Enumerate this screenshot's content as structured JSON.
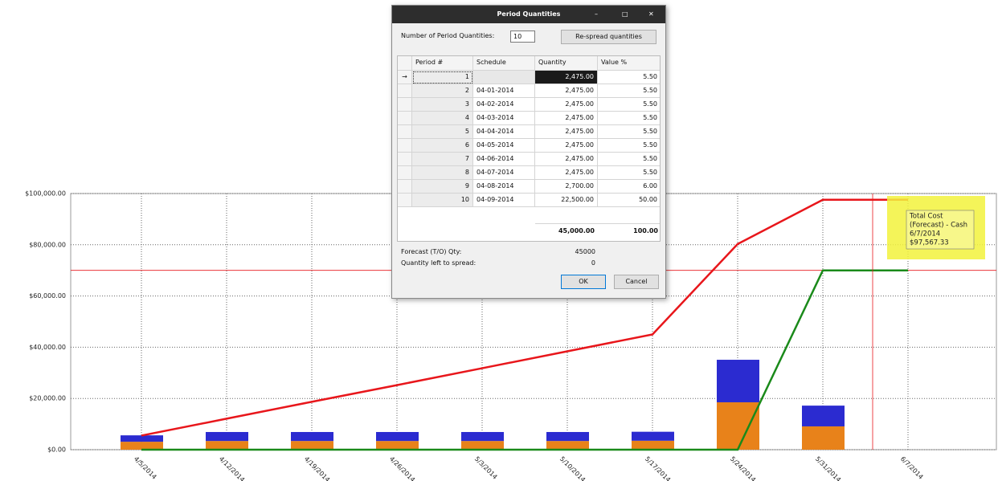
{
  "chart_data": {
    "type": "combo",
    "categories": [
      "4/5/2014",
      "4/12/2014",
      "4/19/2014",
      "4/26/2014",
      "5/3/2014",
      "5/10/2014",
      "5/17/2014",
      "5/24/2014",
      "5/31/2014",
      "6/7/2014"
    ],
    "series": [
      {
        "type": "bar",
        "color": "#e8821a",
        "values": [
          3100,
          3400,
          3400,
          3400,
          3400,
          3400,
          3500,
          18500,
          9100,
          null
        ]
      },
      {
        "type": "bar",
        "color": "#2b2bd0",
        "values": [
          2500,
          3500,
          3500,
          3500,
          3500,
          3500,
          3500,
          16600,
          8100,
          null
        ]
      },
      {
        "type": "line",
        "color": "#e8161b",
        "values": [
          5500,
          12100,
          18700,
          25200,
          31800,
          38400,
          45000,
          80300,
          97567.33,
          97567.33
        ]
      },
      {
        "type": "line",
        "color": "#1a8a1a",
        "values": [
          0,
          0,
          0,
          0,
          0,
          0,
          0,
          0,
          70000,
          70000
        ]
      }
    ],
    "reference_value": 70000,
    "ylim": [
      0,
      100000
    ],
    "yticks": [
      {
        "value": 0,
        "label": "$0.00"
      },
      {
        "value": 20000,
        "label": "$20,000.00"
      },
      {
        "value": 40000,
        "label": "$40,000.00"
      },
      {
        "value": 60000,
        "label": "$60,000.00"
      },
      {
        "value": 80000,
        "label": "$80,000.00"
      },
      {
        "value": 100000,
        "label": "$100,000.00"
      }
    ],
    "grid": true,
    "tooltip": [
      "Total Cost",
      "(Forecast) - Cash",
      "6/7/2014",
      "$97,567.33"
    ]
  },
  "dialog": {
    "title": "Period Quantities",
    "number_label": "Number of Period Quantities:",
    "number_value": 10,
    "respread_button": "Re-spread quantities",
    "columns": [
      "Period #",
      "Schedule",
      "Quantity",
      "Value %"
    ],
    "rows": [
      [
        1,
        null,
        "2,475.00",
        "5.50"
      ],
      [
        2,
        "04-01-2014",
        "2,475.00",
        "5.50"
      ],
      [
        3,
        "04-02-2014",
        "2,475.00",
        "5.50"
      ],
      [
        4,
        "04-03-2014",
        "2,475.00",
        "5.50"
      ],
      [
        5,
        "04-04-2014",
        "2,475.00",
        "5.50"
      ],
      [
        6,
        "04-05-2014",
        "2,475.00",
        "5.50"
      ],
      [
        7,
        "04-06-2014",
        "2,475.00",
        "5.50"
      ],
      [
        8,
        "04-07-2014",
        "2,475.00",
        "5.50"
      ],
      [
        9,
        "04-08-2014",
        "2,700.00",
        "6.00"
      ],
      [
        10,
        "04-09-2014",
        "22,500.00",
        "50.00"
      ]
    ],
    "totals": [
      "45,000.00",
      "100.00"
    ],
    "forecast_label": "Forecast (T/O) Qty:",
    "forecast_value": 45000,
    "left_label": "Quantity left to spread:",
    "left_value": 0,
    "ok_button": "OK",
    "cancel_button": "Cancel"
  }
}
